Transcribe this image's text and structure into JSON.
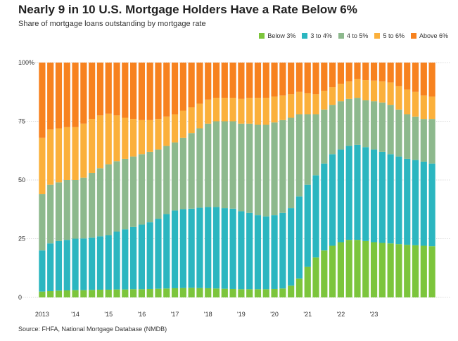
{
  "title": "Nearly 9 in 10 U.S. Mortgage Holders Have a Rate Below 6%",
  "subtitle": "Share of mortgage loans outstanding by mortgage rate",
  "source": "Source: FHFA, National Mortgage Database (NMDB)",
  "colors": {
    "below3": "#7cc53c",
    "r3to4": "#2bb6c0",
    "r4to5": "#8db98d",
    "r5to6": "#fbb03b",
    "above6": "#f7821f",
    "grid": "#d9d9d9"
  },
  "legend": [
    {
      "label": "Below 3%",
      "color": "#7cc53c"
    },
    {
      "label": "3 to 4%",
      "color": "#2bb6c0"
    },
    {
      "label": "4 to 5%",
      "color": "#8db98d"
    },
    {
      "label": "5 to 6%",
      "color": "#fbb03b"
    },
    {
      "label": "Above 6%",
      "color": "#f7821f"
    }
  ],
  "chart_data": {
    "type": "bar",
    "stacked": true,
    "frequency": "quarterly",
    "x_tick_labels": [
      "2013",
      "'14",
      "'15",
      "'16",
      "'17",
      "'18",
      "'19",
      "'20",
      "'21",
      "'22",
      "'23"
    ],
    "y_tick_labels": [
      "100%",
      "75",
      "50",
      "25",
      "0"
    ],
    "ylim": [
      0,
      100
    ],
    "grid": true,
    "legend_position": "top-right",
    "series": [
      {
        "name": "Below 3%",
        "values": [
          2.5,
          2.7,
          2.9,
          3.0,
          3.1,
          3.1,
          3.2,
          3.3,
          3.3,
          3.4,
          3.4,
          3.5,
          3.5,
          3.6,
          3.7,
          3.8,
          3.9,
          4.0,
          4.1,
          4.0,
          3.9,
          3.8,
          3.7,
          3.6,
          3.5,
          3.5,
          3.5,
          3.5,
          3.6,
          3.8,
          5.0,
          8.0,
          13.0,
          17.0,
          20.0,
          22.0,
          23.5,
          24.5,
          24.5,
          24.0,
          23.5,
          23.2,
          23.0,
          22.7,
          22.4,
          22.2,
          22.0,
          21.8
        ]
      },
      {
        "name": "3 to 4%",
        "values": [
          17.5,
          20.3,
          21.1,
          21.5,
          21.9,
          22.0,
          22.3,
          22.7,
          23.2,
          24.6,
          25.6,
          26.5,
          27.5,
          28.4,
          29.8,
          31.7,
          33.1,
          33.6,
          33.7,
          34.2,
          34.6,
          34.7,
          34.3,
          34.2,
          33.2,
          32.5,
          31.5,
          31.0,
          31.4,
          32.2,
          33.0,
          35.0,
          35.0,
          35.0,
          37.0,
          39.0,
          39.5,
          40.0,
          40.5,
          40.0,
          39.5,
          38.8,
          38.0,
          37.3,
          36.6,
          36.3,
          35.8,
          35.2
        ]
      },
      {
        "name": "4 to 5%",
        "values": [
          24.0,
          25.0,
          25.0,
          25.5,
          25.0,
          25.9,
          27.5,
          29.0,
          30.2,
          30.0,
          30.0,
          30.0,
          30.0,
          30.0,
          29.5,
          29.0,
          29.0,
          30.4,
          32.2,
          33.8,
          35.5,
          36.5,
          37.0,
          37.2,
          37.3,
          38.0,
          38.5,
          39.0,
          39.5,
          39.5,
          38.5,
          35.0,
          30.0,
          26.0,
          23.0,
          21.0,
          20.5,
          20.0,
          20.0,
          20.0,
          20.5,
          21.0,
          21.0,
          20.0,
          19.0,
          18.5,
          18.2,
          19.0
        ]
      },
      {
        "name": "5 to 6%",
        "values": [
          24.0,
          23.5,
          23.0,
          22.5,
          22.5,
          23.0,
          23.0,
          22.5,
          21.5,
          19.5,
          17.5,
          16.0,
          14.5,
          13.5,
          13.0,
          12.5,
          12.0,
          11.5,
          11.0,
          10.5,
          10.2,
          10.0,
          10.0,
          10.0,
          10.5,
          11.0,
          11.5,
          11.5,
          11.0,
          10.5,
          10.0,
          9.5,
          9.0,
          8.5,
          8.0,
          7.5,
          7.5,
          7.5,
          8.0,
          8.5,
          8.8,
          9.0,
          9.5,
          10.0,
          10.5,
          10.5,
          10.0,
          9.5
        ]
      },
      {
        "name": "Above 6%",
        "values": [
          32.0,
          28.5,
          28.0,
          27.5,
          27.5,
          26.0,
          24.0,
          22.5,
          21.8,
          22.5,
          23.5,
          24.0,
          24.5,
          24.5,
          24.0,
          23.0,
          22.0,
          20.5,
          19.0,
          17.5,
          15.8,
          15.0,
          15.0,
          15.0,
          15.5,
          15.0,
          15.0,
          15.0,
          14.5,
          14.0,
          13.5,
          12.5,
          13.0,
          13.5,
          12.0,
          10.5,
          9.0,
          8.0,
          7.0,
          7.5,
          7.7,
          8.0,
          8.5,
          10.0,
          11.5,
          12.5,
          14.0,
          14.5
        ]
      }
    ]
  }
}
